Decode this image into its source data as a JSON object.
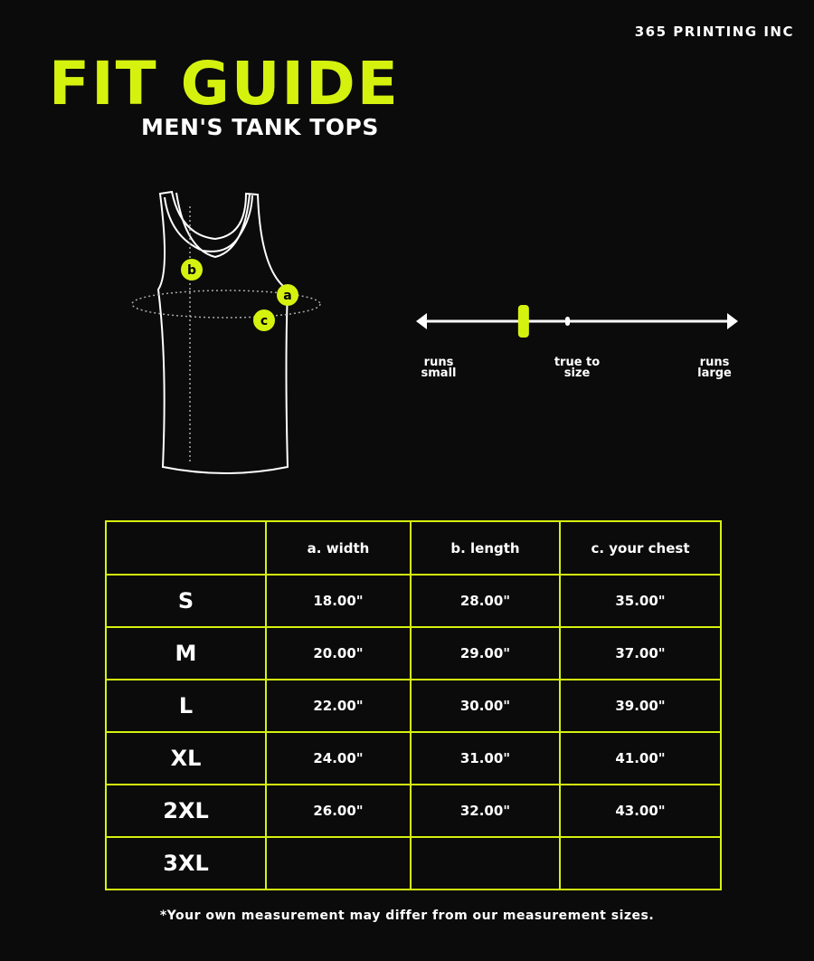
{
  "brand": "365 PRINTING INC",
  "title": "FIT GUIDE",
  "subtitle": "MEN'S TANK TOPS",
  "diagram": {
    "markers": [
      "a",
      "b",
      "c"
    ]
  },
  "fit_scale": {
    "left": "runs small",
    "middle": "true to size",
    "right": "runs large",
    "position_fraction": 0.33
  },
  "colors": {
    "accent": "#d5f20f",
    "background": "#0b0b0b"
  },
  "table": {
    "headers": [
      "",
      "a. width",
      "b. length",
      "c. your chest"
    ],
    "rows": [
      [
        "S",
        "18.00\"",
        "28.00\"",
        "35.00\""
      ],
      [
        "M",
        "20.00\"",
        "29.00\"",
        "37.00\""
      ],
      [
        "L",
        "22.00\"",
        "30.00\"",
        "39.00\""
      ],
      [
        "XL",
        "24.00\"",
        "31.00\"",
        "41.00\""
      ],
      [
        "2XL",
        "26.00\"",
        "32.00\"",
        "43.00\""
      ],
      [
        "3XL",
        "",
        "",
        ""
      ]
    ]
  },
  "note": "*Your own measurement may differ from our measurement sizes."
}
